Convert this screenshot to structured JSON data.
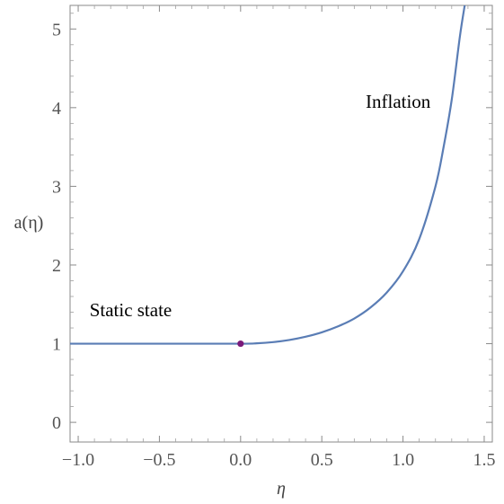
{
  "chart_data": {
    "type": "line",
    "title": "",
    "xlabel": "η",
    "ylabel": "a(η)",
    "xlim": [
      -1.05,
      1.55
    ],
    "ylim": [
      -0.25,
      5.3
    ],
    "x_ticks": [
      -1.0,
      -0.5,
      0.0,
      0.5,
      1.0,
      1.5
    ],
    "x_tick_labels": [
      "−1.0",
      "−0.5",
      "0.0",
      "0.5",
      "1.0",
      "1.5"
    ],
    "y_ticks": [
      0,
      1,
      2,
      3,
      4,
      5
    ],
    "y_tick_labels": [
      "0",
      "1",
      "2",
      "3",
      "4",
      "5"
    ],
    "grid": false,
    "series": [
      {
        "color": "#5a7db5",
        "x": [
          -1.05,
          -0.5,
          0.0,
          0.1,
          0.2,
          0.3,
          0.4,
          0.5,
          0.6,
          0.7,
          0.8,
          0.9,
          1.0,
          1.1,
          1.2,
          1.25,
          1.3,
          1.35,
          1.38
        ],
        "y": [
          1.0,
          1.0,
          1.0,
          1.005,
          1.02,
          1.047,
          1.088,
          1.144,
          1.22,
          1.32,
          1.46,
          1.65,
          1.92,
          2.33,
          3.0,
          3.5,
          4.1,
          4.9,
          5.3
        ]
      }
    ],
    "marker": {
      "x": 0.0,
      "y": 1.0,
      "color": "#7a1a7a"
    },
    "annotations": [
      {
        "text": "Static state",
        "x": -0.93,
        "y": 1.35
      },
      {
        "text": "Inflation",
        "x": 0.77,
        "y": 4.0
      }
    ]
  }
}
